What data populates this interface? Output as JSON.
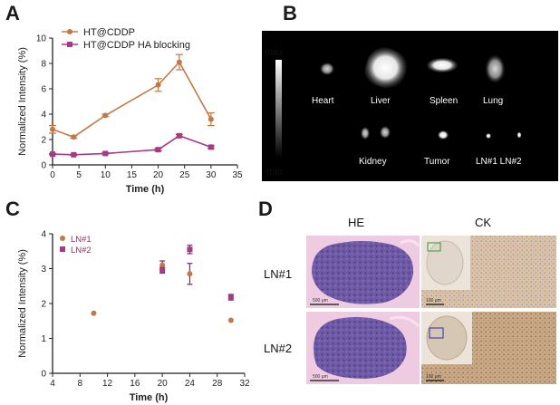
{
  "panels": {
    "a": {
      "letter": "A"
    },
    "b": {
      "letter": "B",
      "scale_max": "max",
      "scale_min": "min",
      "organs": [
        "Heart",
        "Liver",
        "Spleen",
        "Lung",
        "Kidney",
        "Tumor",
        "LN#1 LN#2"
      ]
    },
    "c": {
      "letter": "C"
    },
    "d": {
      "letter": "D",
      "col_he": "HE",
      "col_ck": "CK",
      "row1": "LN#1",
      "row2": "LN#2",
      "scalebar_500": "500 μm",
      "scalebar_100": "100 μm"
    }
  },
  "colors": {
    "brown": "#c07a48",
    "magenta": "#a63a84",
    "dark_purple": "#7d2a66"
  },
  "chart_data": [
    {
      "type": "line",
      "panel": "A",
      "xlabel": "Time (h)",
      "ylabel": "Normalized Intensity (%)",
      "xlim": [
        0,
        35
      ],
      "ylim": [
        0,
        10
      ],
      "xticks": [
        0,
        5,
        10,
        15,
        20,
        25,
        30,
        35
      ],
      "yticks": [
        0,
        2,
        4,
        6,
        8,
        10
      ],
      "legend_position": "top-left",
      "series": [
        {
          "name": "HT@CDDP",
          "color": "#c07a48",
          "marker": "circle",
          "x": [
            0,
            4,
            10,
            20,
            24,
            30
          ],
          "y": [
            2.8,
            2.2,
            3.9,
            6.3,
            8.1,
            3.6
          ],
          "err": [
            0.3,
            0.1,
            0.1,
            0.5,
            0.6,
            0.5
          ]
        },
        {
          "name": "HT@CDDP HA blocking",
          "color": "#a63a84",
          "marker": "square",
          "x": [
            0,
            4,
            10,
            20,
            24,
            30
          ],
          "y": [
            0.85,
            0.8,
            0.9,
            1.2,
            2.3,
            1.4
          ],
          "err": [
            0.05,
            0.05,
            0.05,
            0.1,
            0.1,
            0.1
          ]
        }
      ]
    },
    {
      "type": "scatter",
      "panel": "C",
      "xlabel": "Time (h)",
      "ylabel": "Normalized Intensity (%)",
      "xlim": [
        4,
        32
      ],
      "ylim": [
        0,
        4
      ],
      "xticks": [
        4,
        8,
        12,
        16,
        20,
        24,
        28,
        32
      ],
      "yticks": [
        0,
        1,
        2,
        3,
        4
      ],
      "legend_position": "top-left",
      "series": [
        {
          "name": "LN#1",
          "color": "#c07a48",
          "marker": "circle",
          "x": [
            10,
            20,
            24,
            30
          ],
          "y": [
            1.72,
            3.1,
            2.85,
            1.52
          ],
          "err": [
            0,
            0.12,
            0.3,
            0
          ]
        },
        {
          "name": "LN#2",
          "color": "#a63a84",
          "marker": "square",
          "x": [
            20,
            24,
            30
          ],
          "y": [
            2.95,
            3.55,
            2.18
          ],
          "err": [
            0.08,
            0.12,
            0.08
          ]
        }
      ]
    }
  ]
}
